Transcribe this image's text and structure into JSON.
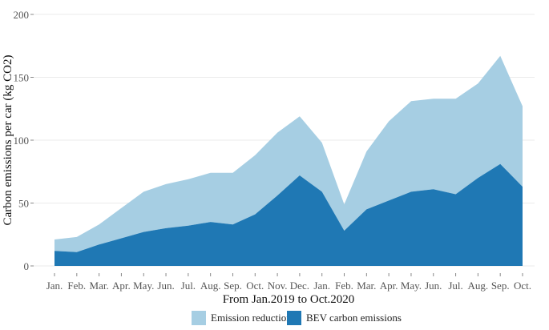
{
  "chart_data": {
    "type": "area",
    "stacked": true,
    "xlabel": "From Jan.2019 to Oct.2020",
    "ylabel": "Carbon emissions per car (kg CO2)",
    "ylim": [
      0,
      200
    ],
    "yticks": [
      0,
      50,
      100,
      150,
      200
    ],
    "grid": true,
    "legend_position": "bottom",
    "categories": [
      "Jan.",
      "Feb.",
      "Mar.",
      "Apr.",
      "May.",
      "Jun.",
      "Jul.",
      "Aug.",
      "Sep.",
      "Oct.",
      "Nov.",
      "Dec.",
      "Jan.",
      "Feb.",
      "Mar.",
      "Apr.",
      "May.",
      "Jun.",
      "Jul.",
      "Aug.",
      "Sep.",
      "Oct."
    ],
    "series": [
      {
        "name": "BEV carbon emissions",
        "color": "#1f78b4",
        "values": [
          12,
          11,
          17,
          22,
          27,
          30,
          32,
          35,
          33,
          41,
          56,
          72,
          59,
          28,
          45,
          52,
          59,
          61,
          57,
          70,
          81,
          63
        ]
      },
      {
        "name": "Emission reduction",
        "color": "#a6cee3",
        "values": [
          9,
          12,
          16,
          24,
          32,
          35,
          37,
          39,
          41,
          47,
          50,
          47,
          39,
          21,
          46,
          63,
          72,
          72,
          76,
          75,
          86,
          64
        ]
      }
    ]
  }
}
